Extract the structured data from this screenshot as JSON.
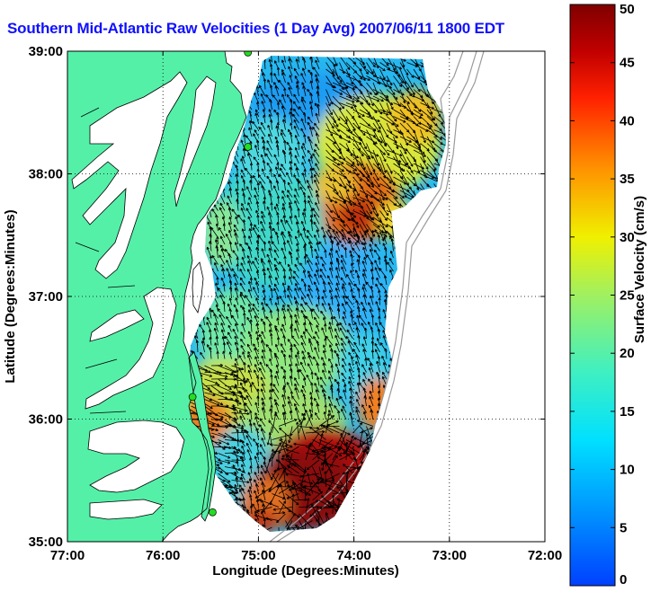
{
  "title": "Southern Mid-Atlantic Raw Velocities (1 Day Avg) 2007/06/11 1800 EDT",
  "map": {
    "xlabel": "Longitude (Degrees:Minutes)",
    "ylabel": "Latitude (Degrees:Minutes)",
    "x_ticks": [
      {
        "value": -77,
        "label": "77:00"
      },
      {
        "value": -76,
        "label": "76:00"
      },
      {
        "value": -75,
        "label": "75:00"
      },
      {
        "value": -74,
        "label": "74:00"
      },
      {
        "value": -73,
        "label": "73:00"
      },
      {
        "value": -72,
        "label": "72:00"
      }
    ],
    "y_ticks": [
      {
        "value": 35,
        "label": "35:00"
      },
      {
        "value": 36,
        "label": "36:00"
      },
      {
        "value": 37,
        "label": "37:00"
      },
      {
        "value": 38,
        "label": "38:00"
      },
      {
        "value": 39,
        "label": "39:00"
      }
    ],
    "xlim": [
      -77,
      -72
    ],
    "ylim": [
      35,
      39
    ],
    "grid": "dotted",
    "land_color": "#55f0a8",
    "stations": [
      {
        "lon": -75.11,
        "lat": 38.99
      },
      {
        "lon": -75.11,
        "lat": 38.22
      },
      {
        "lon": -75.69,
        "lat": 36.18
      },
      {
        "lon": -75.48,
        "lat": 35.24
      }
    ]
  },
  "colorbar": {
    "label": "Surface Velocity (cm/s)",
    "unit": "cm/s",
    "range": [
      0,
      50
    ],
    "ticks": [
      0,
      5,
      10,
      15,
      20,
      25,
      30,
      35,
      40,
      45,
      50
    ],
    "colormap": "jet"
  }
}
